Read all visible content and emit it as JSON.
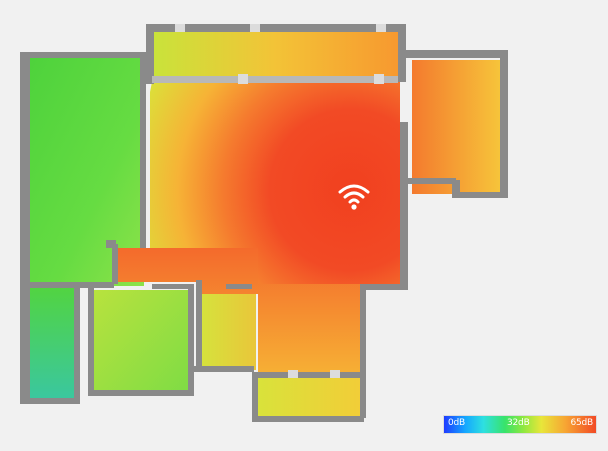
{
  "heatmap": {
    "icon": "wifi-icon",
    "colors": {
      "strong": "#f24a25",
      "medium": "#f7a533",
      "weak": "#8de840",
      "wall": "#8a8a8a",
      "background": "#f1f1f1"
    }
  },
  "legend": {
    "min_label": "0dB",
    "mid_label": "32dB",
    "max_label": "65dB"
  }
}
